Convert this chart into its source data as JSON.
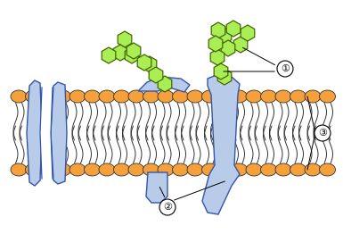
{
  "fig_width": 3.85,
  "fig_height": 2.62,
  "dpi": 100,
  "bg_color": "#ffffff",
  "head_color": "#F5A03A",
  "head_ec": "#333333",
  "tail_ec": "#333333",
  "protein_color": "#b8ccea",
  "protein_ec": "#3355aa",
  "sugar_color": "#aaee55",
  "sugar_ec": "#446600",
  "label_ec": "#111111"
}
